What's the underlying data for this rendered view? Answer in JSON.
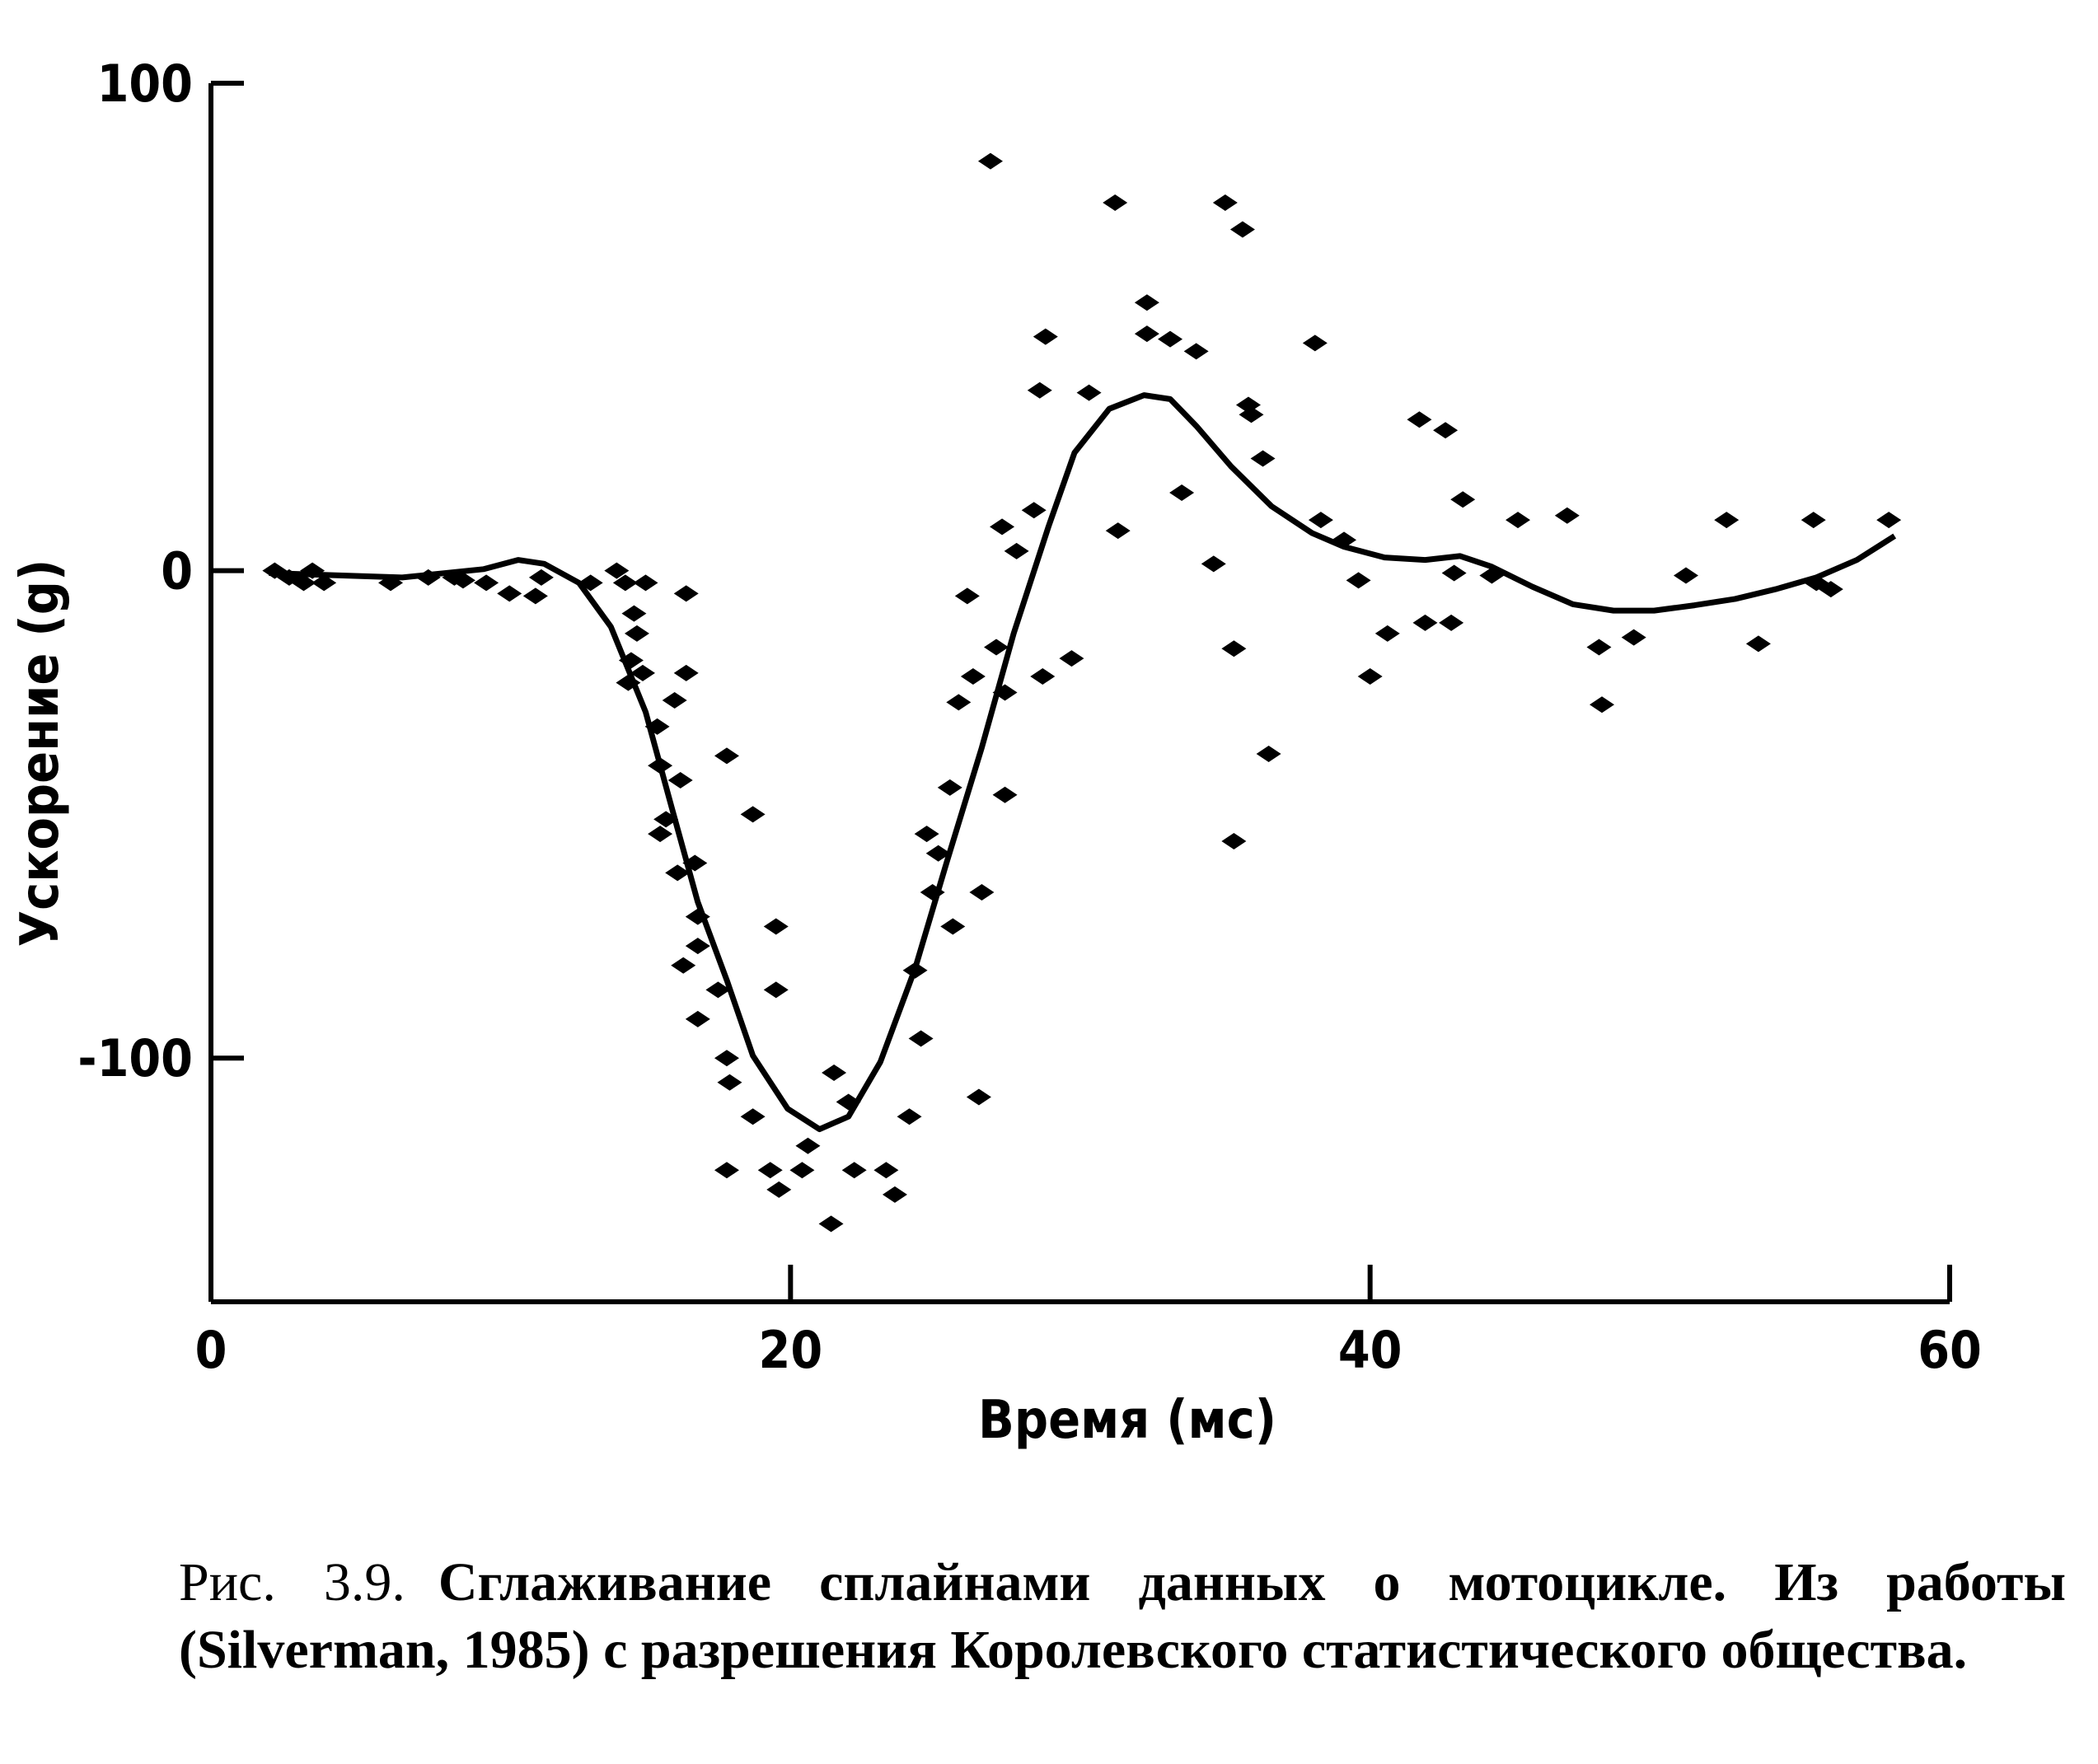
{
  "chart_data": {
    "type": "scatter",
    "x_label": "Время (мс)",
    "y_label": "Ускорение (g)",
    "xlim": [
      0,
      60
    ],
    "xticks": [
      0,
      20,
      40,
      60
    ],
    "ylim": [
      -150,
      100
    ],
    "yticks": [
      -100,
      0,
      100
    ],
    "series": [
      {
        "type": "scatter",
        "color": "#000000",
        "x": [
          2.2,
          2.7,
          3.2,
          3.5,
          3.9,
          6.2,
          7.5,
          8.4,
          8.7,
          9.5,
          10.3,
          11.2,
          11.4,
          13.1,
          14.0,
          14.3,
          14.6,
          14.7,
          14.5,
          14.4,
          15.0,
          14.9,
          15.4,
          15.5,
          15.7,
          15.5,
          16.2,
          16.0,
          16.4,
          16.4,
          16.1,
          16.7,
          16.8,
          16.8,
          16.3,
          16.8,
          17.5,
          17.8,
          17.8,
          17.9,
          17.8,
          18.7,
          18.7,
          19.5,
          19.5,
          19.3,
          19.6,
          20.4,
          20.6,
          21.5,
          21.4,
          22.0,
          22.2,
          23.3,
          23.6,
          24.1,
          24.3,
          24.5,
          24.7,
          25.1,
          24.9,
          25.6,
          25.5,
          25.8,
          26.1,
          26.3,
          26.6,
          26.5,
          27.1,
          27.3,
          27.4,
          27.4,
          27.8,
          28.4,
          28.6,
          28.7,
          28.8,
          29.7,
          30.3,
          26.9,
          31.2,
          31.3,
          32.3,
          32.3,
          33.1,
          33.5,
          34.0,
          34.6,
          35.0,
          35.6,
          35.3,
          35.3,
          35.8,
          35.9,
          36.5,
          36.3,
          38.1,
          38.3,
          39.1,
          39.6,
          40.0,
          40.6,
          41.7,
          41.9,
          42.6,
          42.8,
          42.9,
          43.2,
          44.2,
          45.1,
          46.8,
          47.9,
          48.0,
          49.1,
          50.9,
          52.3,
          53.4,
          55.3,
          55.4,
          55.9,
          57.9
        ],
        "values": [
          0,
          -1.4,
          -2.5,
          0,
          -2.5,
          -2.5,
          -1.4,
          -1.4,
          -2,
          -2.5,
          -4.7,
          -5.2,
          -1.4,
          -2.5,
          0,
          -2.5,
          -8.8,
          -12.9,
          -18.4,
          -23,
          -2.5,
          -21,
          -32,
          -40,
          -51,
          -54,
          -43,
          -26.6,
          -21,
          -4.7,
          -62,
          -60,
          -71,
          -77,
          -81,
          -92,
          -86,
          -38,
          -100,
          -105,
          -123,
          -50,
          -112,
          -73,
          -86,
          -123,
          -127,
          -123,
          -118,
          -103,
          -134,
          -109,
          -123,
          -123,
          -128,
          -112,
          -82,
          -96,
          -54,
          -58,
          -66,
          -73,
          -44.5,
          -27,
          -5.2,
          -21.7,
          -66,
          -108,
          -15.7,
          9,
          -25,
          -46,
          4,
          12.4,
          37,
          -21.7,
          48,
          -18,
          36.5,
          84,
          75.5,
          8.2,
          55,
          48.6,
          47.5,
          16,
          45,
          1.4,
          75.5,
          70,
          -16,
          -55.5,
          34,
          32,
          -37.6,
          23,
          46.7,
          10.4,
          6.3,
          -2,
          -21.7,
          -12.9,
          31,
          -10.7,
          28.8,
          -10.7,
          -0.5,
          14.6,
          -1,
          10.4,
          11.3,
          -15.7,
          -27.5,
          -13.7,
          -1,
          10.4,
          -15,
          10.4,
          -2.5,
          -3.8,
          10.4
        ]
      },
      {
        "type": "line",
        "color": "#000000",
        "x": [
          2,
          6.6,
          9.4,
          10.6,
          11.5,
          12.7,
          13.8,
          15,
          15.9,
          16.8,
          17.8,
          18.7,
          19.9,
          21,
          22,
          23.1,
          24.3,
          25.4,
          26.6,
          27.7,
          28.9,
          29.8,
          31,
          32.2,
          33.1,
          34,
          35.2,
          36.6,
          38,
          39.1,
          40.5,
          41.9,
          43.1,
          44.2,
          45.6,
          47,
          48.4,
          49.8,
          51.2,
          52.6,
          54,
          55.4,
          56.8,
          58.1
        ],
        "values": [
          -0.5,
          -1.4,
          0.3,
          2.2,
          1.4,
          -2.5,
          -11.5,
          -29,
          -48.6,
          -68,
          -84,
          -99.5,
          -110.4,
          -114.6,
          -112,
          -100.8,
          -81.6,
          -59.6,
          -36.3,
          -12.9,
          9,
          24.2,
          33.2,
          36,
          35.2,
          29.7,
          21.4,
          13.2,
          7.7,
          4.9,
          2.7,
          2.2,
          3,
          0.8,
          -3.3,
          -6.9,
          -8.2,
          -8.2,
          -7.1,
          -5.8,
          -3.8,
          -1.4,
          2.2,
          7.1
        ]
      }
    ]
  },
  "caption": {
    "label": "Рис. 3.9.",
    "text": "Сглаживание сплайнами данных о мотоцикле. Из работы (Silverman, 1985) с разрешения Королевского статистического общества."
  }
}
